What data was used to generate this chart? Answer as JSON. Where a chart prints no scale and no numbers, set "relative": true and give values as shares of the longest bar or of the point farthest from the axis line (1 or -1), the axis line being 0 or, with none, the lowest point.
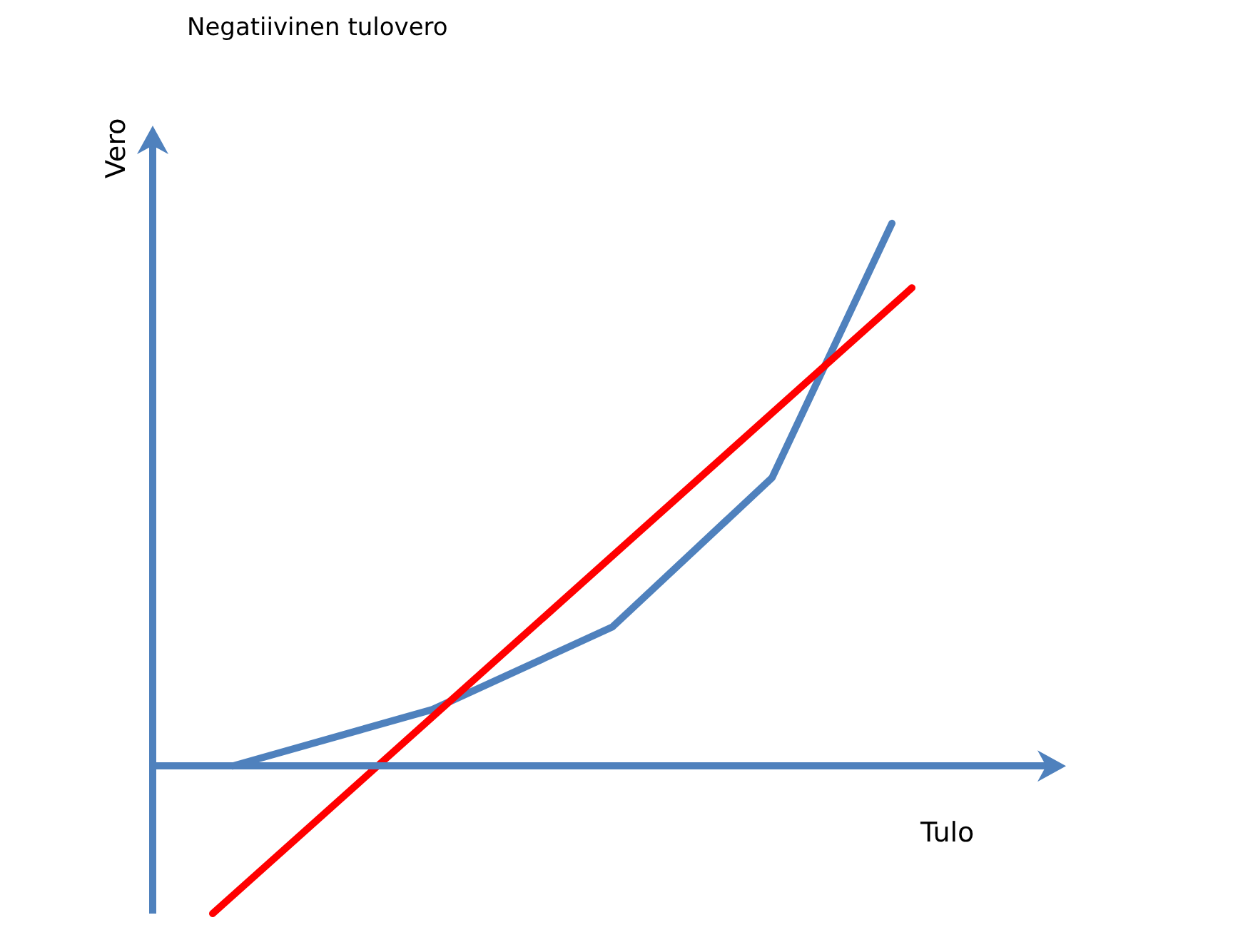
{
  "chart_data": {
    "type": "line",
    "title": "Negatiivinen tulovero",
    "xlabel": "Tulo",
    "ylabel": "Vero",
    "relative": true,
    "ref_lines": [
      {
        "axis": "y",
        "value": 0,
        "color": "#4f81bd"
      }
    ],
    "categories": [
      null,
      null,
      null,
      null,
      null,
      null,
      null,
      null,
      null,
      null,
      null,
      null,
      null,
      null,
      null,
      null,
      null,
      null,
      null,
      null,
      null,
      null,
      null,
      null,
      null,
      null,
      null,
      null,
      null,
      null,
      null,
      null,
      null,
      null,
      null,
      null,
      null,
      null,
      null,
      null,
      null,
      null,
      null,
      null,
      null,
      null
    ],
    "series": [
      {
        "color": "#4f81bd",
        "values": [
          null,
          null,
          null,
          null,
          0,
          null,
          null,
          null,
          null,
          null,
          null,
          null,
          null,
          null,
          0.104,
          null,
          null,
          null,
          null,
          null,
          null,
          null,
          null,
          0.256,
          null,
          null,
          null,
          null,
          null,
          null,
          null,
          0.531,
          null,
          null,
          null,
          null,
          null,
          1,
          null,
          null,
          null,
          null,
          null,
          null,
          null,
          null
        ]
      },
      {
        "color": "#ff0000",
        "values": [
          null,
          null,
          null,
          -0.272,
          null,
          null,
          null,
          null,
          null,
          null,
          null,
          null,
          null,
          null,
          null,
          null,
          null,
          null,
          null,
          null,
          null,
          null,
          null,
          null,
          null,
          null,
          null,
          null,
          null,
          null,
          null,
          null,
          null,
          null,
          null,
          null,
          null,
          null,
          0.881,
          null,
          null,
          null,
          null,
          null,
          null,
          null
        ]
      }
    ]
  }
}
